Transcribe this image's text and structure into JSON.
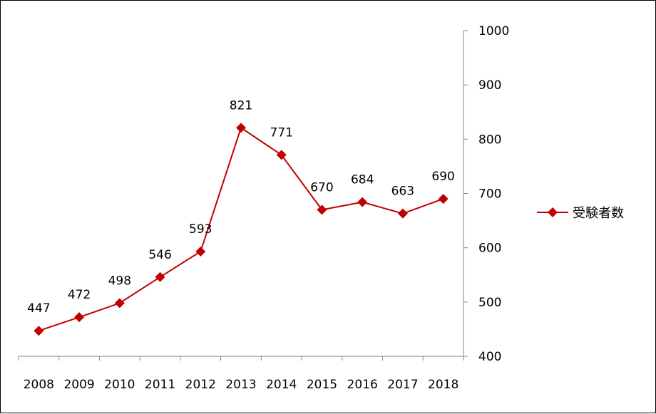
{
  "chart_data": {
    "type": "line",
    "x": [
      "2008",
      "2009",
      "2010",
      "2011",
      "2012",
      "2013",
      "2014",
      "2015",
      "2016",
      "2017",
      "2018"
    ],
    "series": [
      {
        "name": "受験者数",
        "values": [
          447,
          472,
          498,
          546,
          593,
          821,
          771,
          670,
          684,
          663,
          690
        ],
        "color": "#c00000",
        "marker": "diamond"
      }
    ],
    "data_labels": [
      "447",
      "472",
      "498",
      "546",
      "593",
      "821",
      "771",
      "670",
      "684",
      "663",
      "690"
    ],
    "ylim": [
      400,
      1000
    ],
    "yticks": [
      "400",
      "500",
      "600",
      "700",
      "800",
      "900",
      "1000"
    ],
    "y_axis_side": "right",
    "grid": false,
    "legend_position": "right",
    "title": "",
    "xlabel": "",
    "ylabel": ""
  }
}
